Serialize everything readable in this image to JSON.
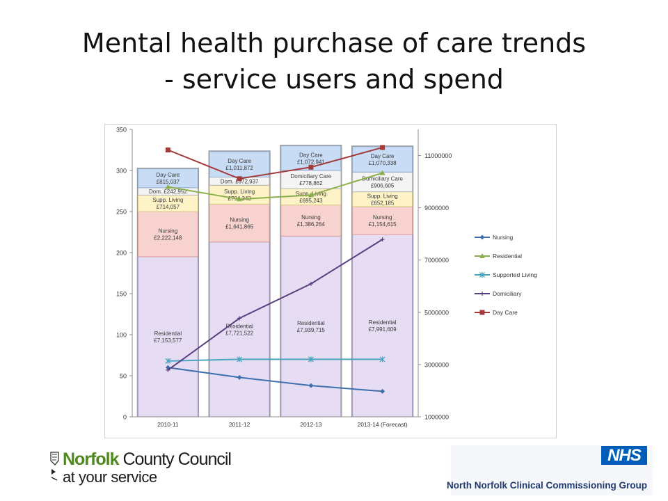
{
  "title_line1": "Mental health purchase of care trends",
  "title_line2": "- service users and spend",
  "chart_data": {
    "type": "bar",
    "stacked": true,
    "categories": [
      "2010-11",
      "2011-12",
      "2012-13",
      "2013-14 (Forecast)"
    ],
    "stack_order": [
      "Residential",
      "Nursing",
      "Supp. Living",
      "Dom.",
      "Day Care"
    ],
    "bar_colors": {
      "Residential": "#e6dcf4",
      "Nursing": "#f7d2cf",
      "Supp. Living": "#fdf3c6",
      "Dom.": "#f4f4f4",
      "Day Care": "#c9dcf5"
    },
    "bar_segments": [
      {
        "Residential": 195,
        "Nursing": 55,
        "Supp. Living": 20,
        "Dom.": 9,
        "Day Care": 23
      },
      {
        "Residential": 213,
        "Nursing": 46,
        "Supp. Living": 23,
        "Dom.": 10,
        "Day Care": 31
      },
      {
        "Residential": 220,
        "Nursing": 38,
        "Supp. Living": 20,
        "Dom.": 22,
        "Day Care": 30
      },
      {
        "Residential": 222,
        "Nursing": 34,
        "Supp. Living": 18,
        "Dom.": 24,
        "Day Care": 31
      }
    ],
    "bar_labels": [
      [
        [
          "Residential",
          "£7,153,577"
        ],
        [
          "Nursing",
          "£2,222,148"
        ],
        [
          "Supp. Living",
          "£714,057"
        ],
        [
          "Dom. £242,952"
        ],
        [
          "Day Care",
          "£815,037"
        ]
      ],
      [
        [
          "Residential",
          "£7,721,522"
        ],
        [
          "Nursing",
          "£1,641,865"
        ],
        [
          "Supp. Living",
          "£794,343"
        ],
        [
          "Dom. £372,937"
        ],
        [
          "Day Care",
          "£1,011,872"
        ]
      ],
      [
        [
          "Residential",
          "£7,939,715"
        ],
        [
          "Nursing",
          "£1,386,264"
        ],
        [
          "Supp. Living",
          "£695,243"
        ],
        [
          "Domiciliary Care",
          "£778,862"
        ],
        [
          "Day Care",
          "£1,072,941"
        ]
      ],
      [
        [
          "Residential",
          "£7,991,609"
        ],
        [
          "Nursing",
          "£1,154,615"
        ],
        [
          "Supp. Living",
          "£652,185"
        ],
        [
          "Domiciliary Care",
          "£906,605"
        ],
        [
          "Day Care",
          "£1,070,338"
        ]
      ]
    ],
    "left_axis": {
      "ylim": [
        0,
        350
      ],
      "ticks": [
        0,
        50,
        100,
        150,
        200,
        250,
        300,
        350
      ]
    },
    "right_axis": {
      "ylim": [
        1000000,
        12000000
      ],
      "ticks": [
        1000000,
        3000000,
        5000000,
        7000000,
        9000000,
        11000000
      ]
    },
    "series": [
      {
        "name": "Nursing",
        "color": "#3f6fad",
        "marker": "diamond",
        "values": [
          60,
          48,
          38,
          31
        ]
      },
      {
        "name": "Residential",
        "color": "#8ab04c",
        "marker": "triangle",
        "values": [
          280,
          265,
          270,
          297
        ]
      },
      {
        "name": "Supported Living",
        "color": "#4ba5bf",
        "marker": "star",
        "values": [
          68,
          70,
          70,
          70
        ]
      },
      {
        "name": "Domiciliary",
        "color": "#5a3f7f",
        "marker": "plus",
        "values": [
          57,
          120,
          162,
          216
        ]
      },
      {
        "name": "Day Care",
        "color": "#a33a3a",
        "marker": "square",
        "values": [
          325,
          290,
          304,
          328
        ]
      }
    ],
    "legend_position": "right",
    "grid": false
  },
  "logos": {
    "council_norfolk": "Norfolk",
    "council_rest": "County Council",
    "council_tagline": "at your service",
    "nhs_badge": "NHS",
    "ccg_name": "North Norfolk Clinical Commissioning Group"
  }
}
